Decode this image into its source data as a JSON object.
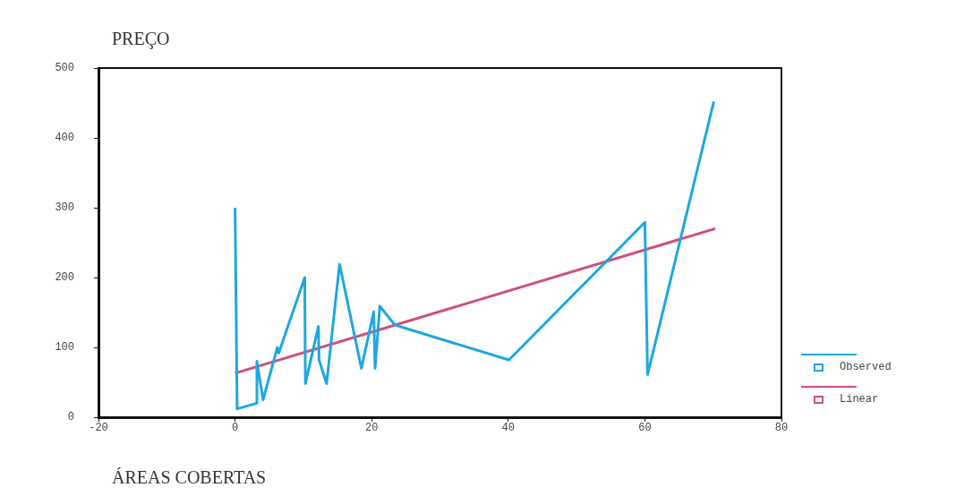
{
  "chart_data": {
    "type": "line",
    "xlabel": "ÁREAS COBERTAS",
    "ylabel": "PREÇO",
    "xlim": [
      -20,
      80
    ],
    "xticks": [
      -20,
      0,
      20,
      40,
      60,
      80
    ],
    "ylim": [
      0,
      500
    ],
    "yticks": [
      0,
      100,
      200,
      300,
      400,
      500
    ],
    "grid": false,
    "legend": "right",
    "marker": "none",
    "line_style": "solid",
    "series": [
      {
        "name": "Observed",
        "color": "#1ea8e0",
        "x": [
          0,
          0.3,
          3.2,
          3.2,
          4.1,
          6.2,
          6.4,
          10.2,
          10.3,
          12.2,
          12.3,
          13.4,
          15.3,
          18.5,
          20.3,
          20.5,
          21.2,
          23.4,
          40.1,
          60,
          60.4,
          70.1
        ],
        "values": [
          300,
          12,
          20,
          80,
          25,
          100,
          92,
          200,
          48,
          130,
          82,
          48,
          219,
          70,
          151,
          70,
          159,
          132,
          82,
          279,
          61,
          452
        ]
      },
      {
        "name": "Linear",
        "color": "#d0507a",
        "x": [
          0,
          70.3
        ],
        "values": [
          63,
          270
        ]
      }
    ]
  }
}
